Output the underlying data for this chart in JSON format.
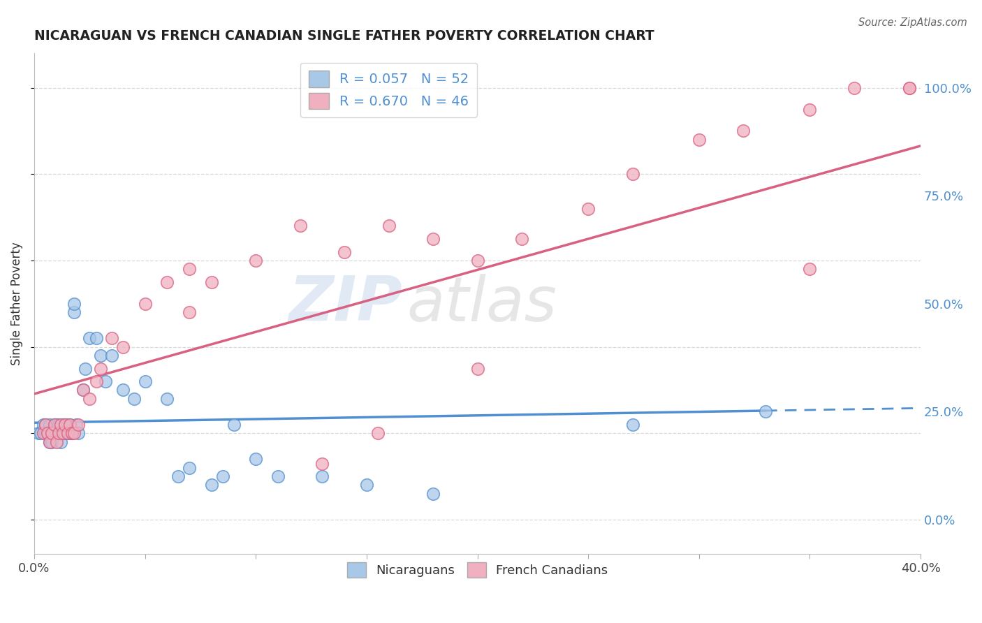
{
  "title": "NICARAGUAN VS FRENCH CANADIAN SINGLE FATHER POVERTY CORRELATION CHART",
  "source": "Source: ZipAtlas.com",
  "ylabel": "Single Father Poverty",
  "xlim": [
    0.0,
    0.4
  ],
  "ylim": [
    -0.08,
    1.08
  ],
  "ytick_positions": [
    0.0,
    0.25,
    0.5,
    0.75,
    1.0
  ],
  "yticklabels_right": [
    "0.0%",
    "25.0%",
    "50.0%",
    "75.0%",
    "100.0%"
  ],
  "blue_R": 0.057,
  "blue_N": 52,
  "pink_R": 0.67,
  "pink_N": 46,
  "blue_color": "#a8c8e8",
  "pink_color": "#f0b0c0",
  "blue_line_color": "#5090d0",
  "pink_line_color": "#d86080",
  "watermark_zip": "ZIP",
  "watermark_atlas": "atlas",
  "grid_color": "#d8d8d8",
  "background_color": "#ffffff",
  "blue_scatter_x": [
    0.002,
    0.003,
    0.004,
    0.005,
    0.005,
    0.006,
    0.007,
    0.007,
    0.008,
    0.008,
    0.009,
    0.009,
    0.01,
    0.01,
    0.011,
    0.012,
    0.012,
    0.013,
    0.014,
    0.014,
    0.015,
    0.015,
    0.016,
    0.016,
    0.017,
    0.018,
    0.018,
    0.019,
    0.02,
    0.022,
    0.023,
    0.025,
    0.028,
    0.03,
    0.032,
    0.035,
    0.04,
    0.045,
    0.05,
    0.06,
    0.065,
    0.07,
    0.08,
    0.085,
    0.09,
    0.1,
    0.11,
    0.13,
    0.15,
    0.18,
    0.27,
    0.33
  ],
  "blue_scatter_y": [
    0.2,
    0.2,
    0.22,
    0.22,
    0.2,
    0.2,
    0.18,
    0.22,
    0.2,
    0.18,
    0.22,
    0.2,
    0.22,
    0.2,
    0.22,
    0.2,
    0.18,
    0.22,
    0.2,
    0.22,
    0.2,
    0.22,
    0.22,
    0.2,
    0.2,
    0.48,
    0.5,
    0.22,
    0.2,
    0.3,
    0.35,
    0.42,
    0.42,
    0.38,
    0.32,
    0.38,
    0.3,
    0.28,
    0.32,
    0.28,
    0.1,
    0.12,
    0.08,
    0.1,
    0.22,
    0.14,
    0.1,
    0.1,
    0.08,
    0.06,
    0.22,
    0.25
  ],
  "pink_scatter_x": [
    0.004,
    0.005,
    0.006,
    0.007,
    0.008,
    0.009,
    0.01,
    0.011,
    0.012,
    0.013,
    0.014,
    0.015,
    0.016,
    0.017,
    0.018,
    0.02,
    0.022,
    0.025,
    0.028,
    0.03,
    0.035,
    0.04,
    0.05,
    0.06,
    0.07,
    0.08,
    0.1,
    0.12,
    0.14,
    0.16,
    0.18,
    0.2,
    0.22,
    0.25,
    0.27,
    0.3,
    0.32,
    0.35,
    0.37,
    0.395,
    0.395,
    0.35,
    0.2,
    0.13,
    0.07,
    0.155
  ],
  "pink_scatter_y": [
    0.2,
    0.22,
    0.2,
    0.18,
    0.2,
    0.22,
    0.18,
    0.2,
    0.22,
    0.2,
    0.22,
    0.2,
    0.22,
    0.2,
    0.2,
    0.22,
    0.3,
    0.28,
    0.32,
    0.35,
    0.42,
    0.4,
    0.5,
    0.55,
    0.48,
    0.55,
    0.6,
    0.68,
    0.62,
    0.68,
    0.65,
    0.6,
    0.65,
    0.72,
    0.8,
    0.88,
    0.9,
    0.95,
    1.0,
    1.0,
    1.0,
    0.58,
    0.35,
    0.13,
    0.58,
    0.2
  ]
}
